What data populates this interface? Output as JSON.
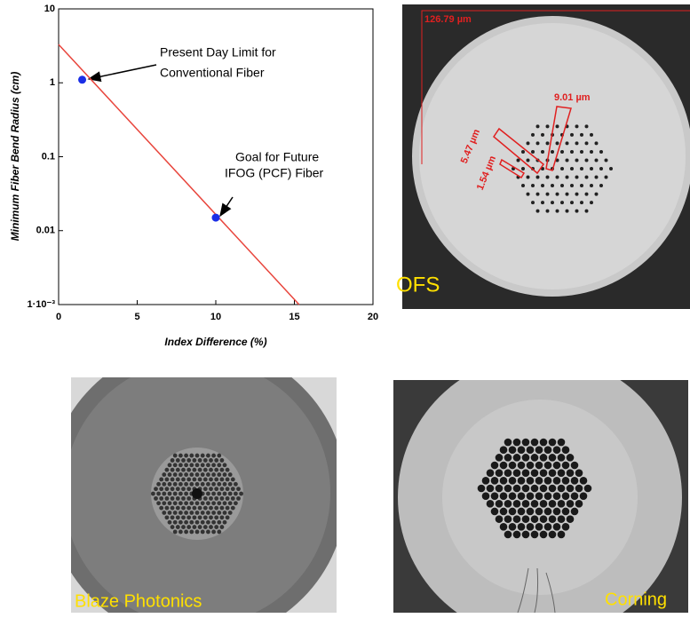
{
  "chart_data": {
    "type": "line",
    "log_y": true,
    "xlabel": "Index Difference (%)",
    "ylabel": "Minimum Fiber Bend Radius (cm)",
    "xlim": [
      0,
      20
    ],
    "xticks": [
      0,
      5,
      10,
      15,
      20
    ],
    "ylim": [
      0.001,
      10
    ],
    "yticks": [
      10,
      1,
      0.1,
      0.01,
      {
        "value": 0.001,
        "label": "1·10⁻³"
      }
    ],
    "series": [
      {
        "mode": "line",
        "color": "#e8453c",
        "x": [
          0,
          15.3
        ],
        "values": [
          3.3,
          0.001
        ]
      },
      {
        "mode": "markers",
        "color": "#1a2ee6",
        "x": [
          1.5,
          10
        ],
        "values": [
          1.1,
          0.015
        ]
      }
    ],
    "annotations": [
      {
        "lines": [
          "Present Day Limit for",
          "Conventional Fiber"
        ]
      },
      {
        "lines": [
          "Goal for Future",
          "IFOG (PCF) Fiber"
        ]
      }
    ]
  },
  "photos": [
    {
      "label": "OFS",
      "measurements": [
        "126.79 µm",
        "9.01 µm",
        "5.47 µm",
        "1.54 µm"
      ]
    },
    {
      "label": "Blaze Photonics"
    },
    {
      "label": "Corning"
    }
  ]
}
